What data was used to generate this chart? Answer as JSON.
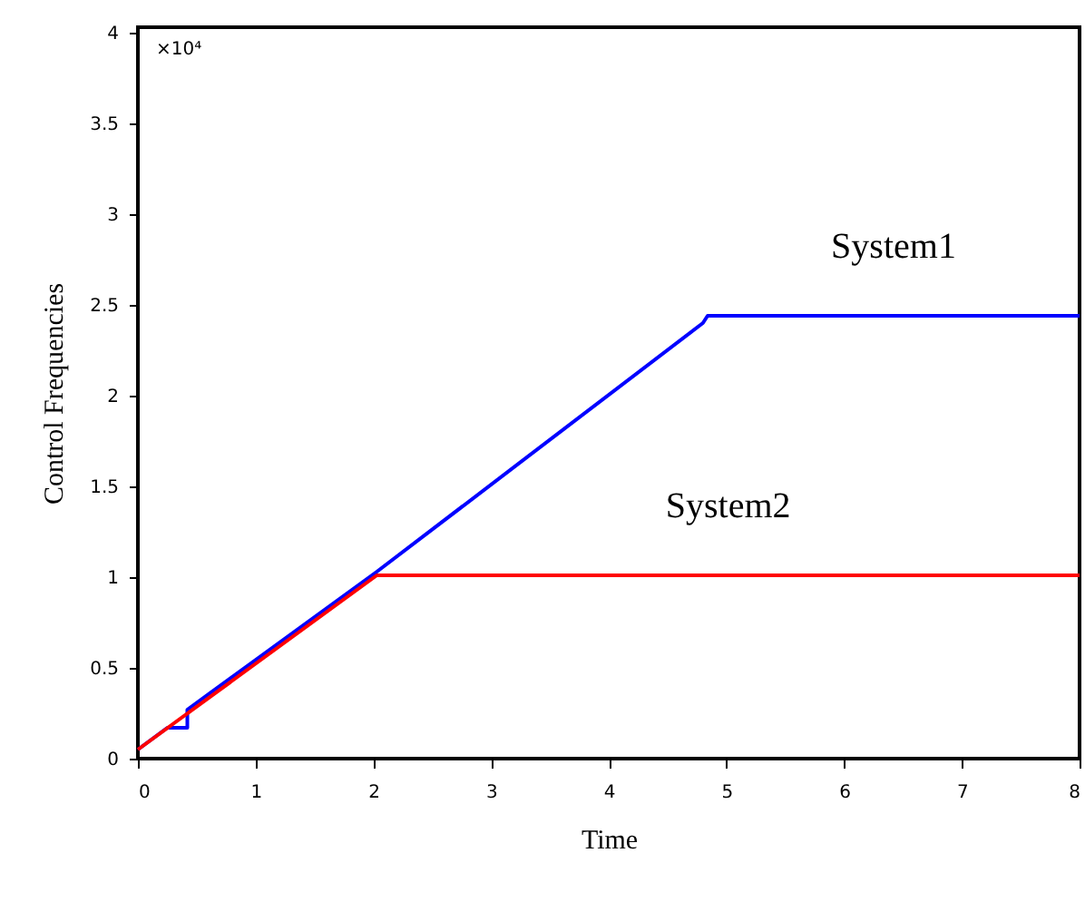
{
  "chart_data": {
    "type": "line",
    "xlabel": "Time",
    "ylabel": "Control Frequencies",
    "annotations": [
      "×10⁴"
    ],
    "series": [
      {
        "name": "System1",
        "color": "#0000ff",
        "x": [
          0,
          0.25,
          0.42,
          0.42,
          2.03,
          4.8,
          4.84,
          8
        ],
        "values": [
          0.05,
          0.17,
          0.17,
          0.27,
          1.03,
          2.4,
          2.44,
          2.44
        ]
      },
      {
        "name": "System2",
        "color": "#ff0000",
        "x": [
          0,
          2.03,
          8
        ],
        "values": [
          0.05,
          1.01,
          1.01
        ]
      }
    ],
    "xlim": [
      0,
      8
    ],
    "xticks": [
      0,
      1,
      2,
      3,
      4,
      5,
      6,
      7,
      8
    ],
    "ylim": [
      0,
      4.03
    ],
    "yticks": [
      0,
      0.5,
      1,
      1.5,
      2,
      2.5,
      3,
      3.5,
      4
    ],
    "grid": false,
    "line_style": "solid",
    "marker": "none"
  }
}
